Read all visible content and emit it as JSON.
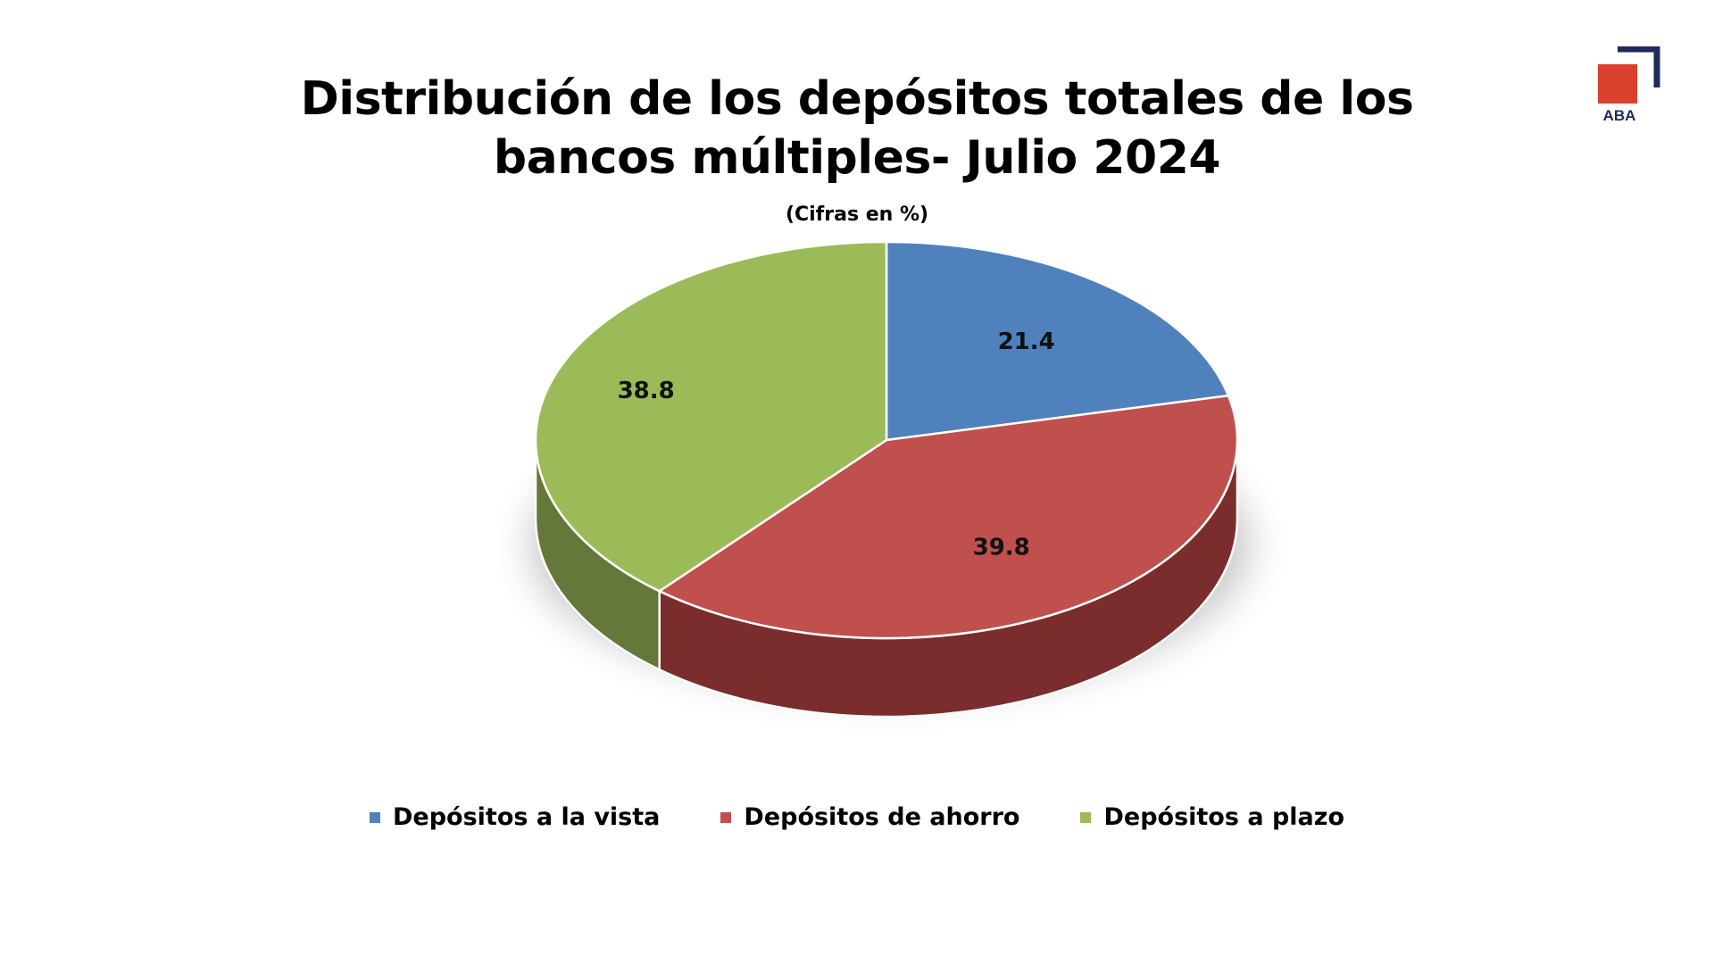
{
  "chart_data": {
    "type": "pie",
    "title": "Distribución  de los depósitos totales de los bancos múltiples- Julio 2024",
    "subtitle": "(Cifras en %)",
    "categories": [
      "Depósitos a la vista",
      "Depósitos de ahorro",
      "Depósitos a plazo"
    ],
    "values": [
      21.4,
      39.8,
      38.8
    ],
    "value_labels": [
      "21.4",
      "39.8",
      "38.8"
    ],
    "colors": [
      "#4F81BD",
      "#C0504D",
      "#9BBB59"
    ],
    "side_colors": [
      "#2F4F7C",
      "#7B2D2D",
      "#66773A"
    ],
    "style": "3d",
    "legend_position": "bottom"
  },
  "logo": {
    "text": "ABA",
    "square_color": "#D9412E",
    "frame_color": "#1F2A5C"
  }
}
